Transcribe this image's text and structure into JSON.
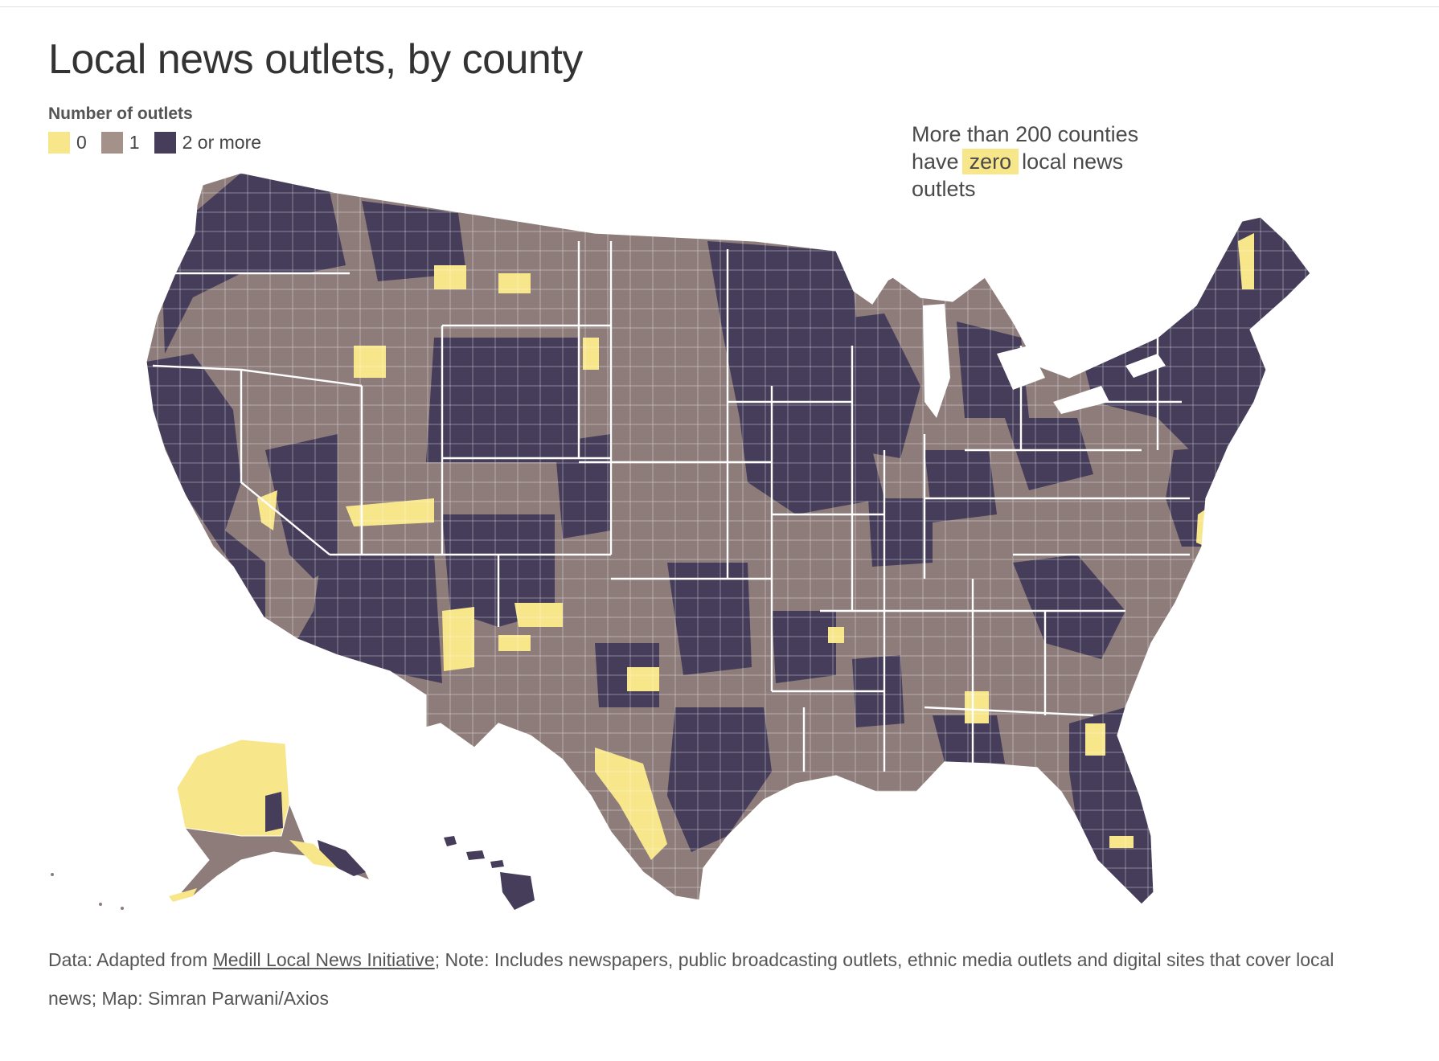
{
  "title": "Local news outlets, by county",
  "legend": {
    "title": "Number of outlets",
    "items": [
      {
        "label": "0",
        "color": "#f7e68a"
      },
      {
        "label": "1",
        "color": "#a3918a"
      },
      {
        "label": "2 or more",
        "color": "#453d59"
      }
    ]
  },
  "annotation": {
    "line1": "More than 200 counties",
    "prefix": "have",
    "highlight": "zero",
    "suffix": "local news",
    "line3": "outlets"
  },
  "colors": {
    "zero": "#f7e68a",
    "one": "#a3918a",
    "two_plus": "#453d59",
    "border": "#ffffff"
  },
  "footer": {
    "data_prefix": "Data: Adapted from",
    "data_source": "Medill Local News Initiative",
    "note": "; Note: Includes newspapers, public broadcasting outlets, ethnic media outlets and digital sites that cover local news; Map: Simran Parwani/Axios"
  }
}
